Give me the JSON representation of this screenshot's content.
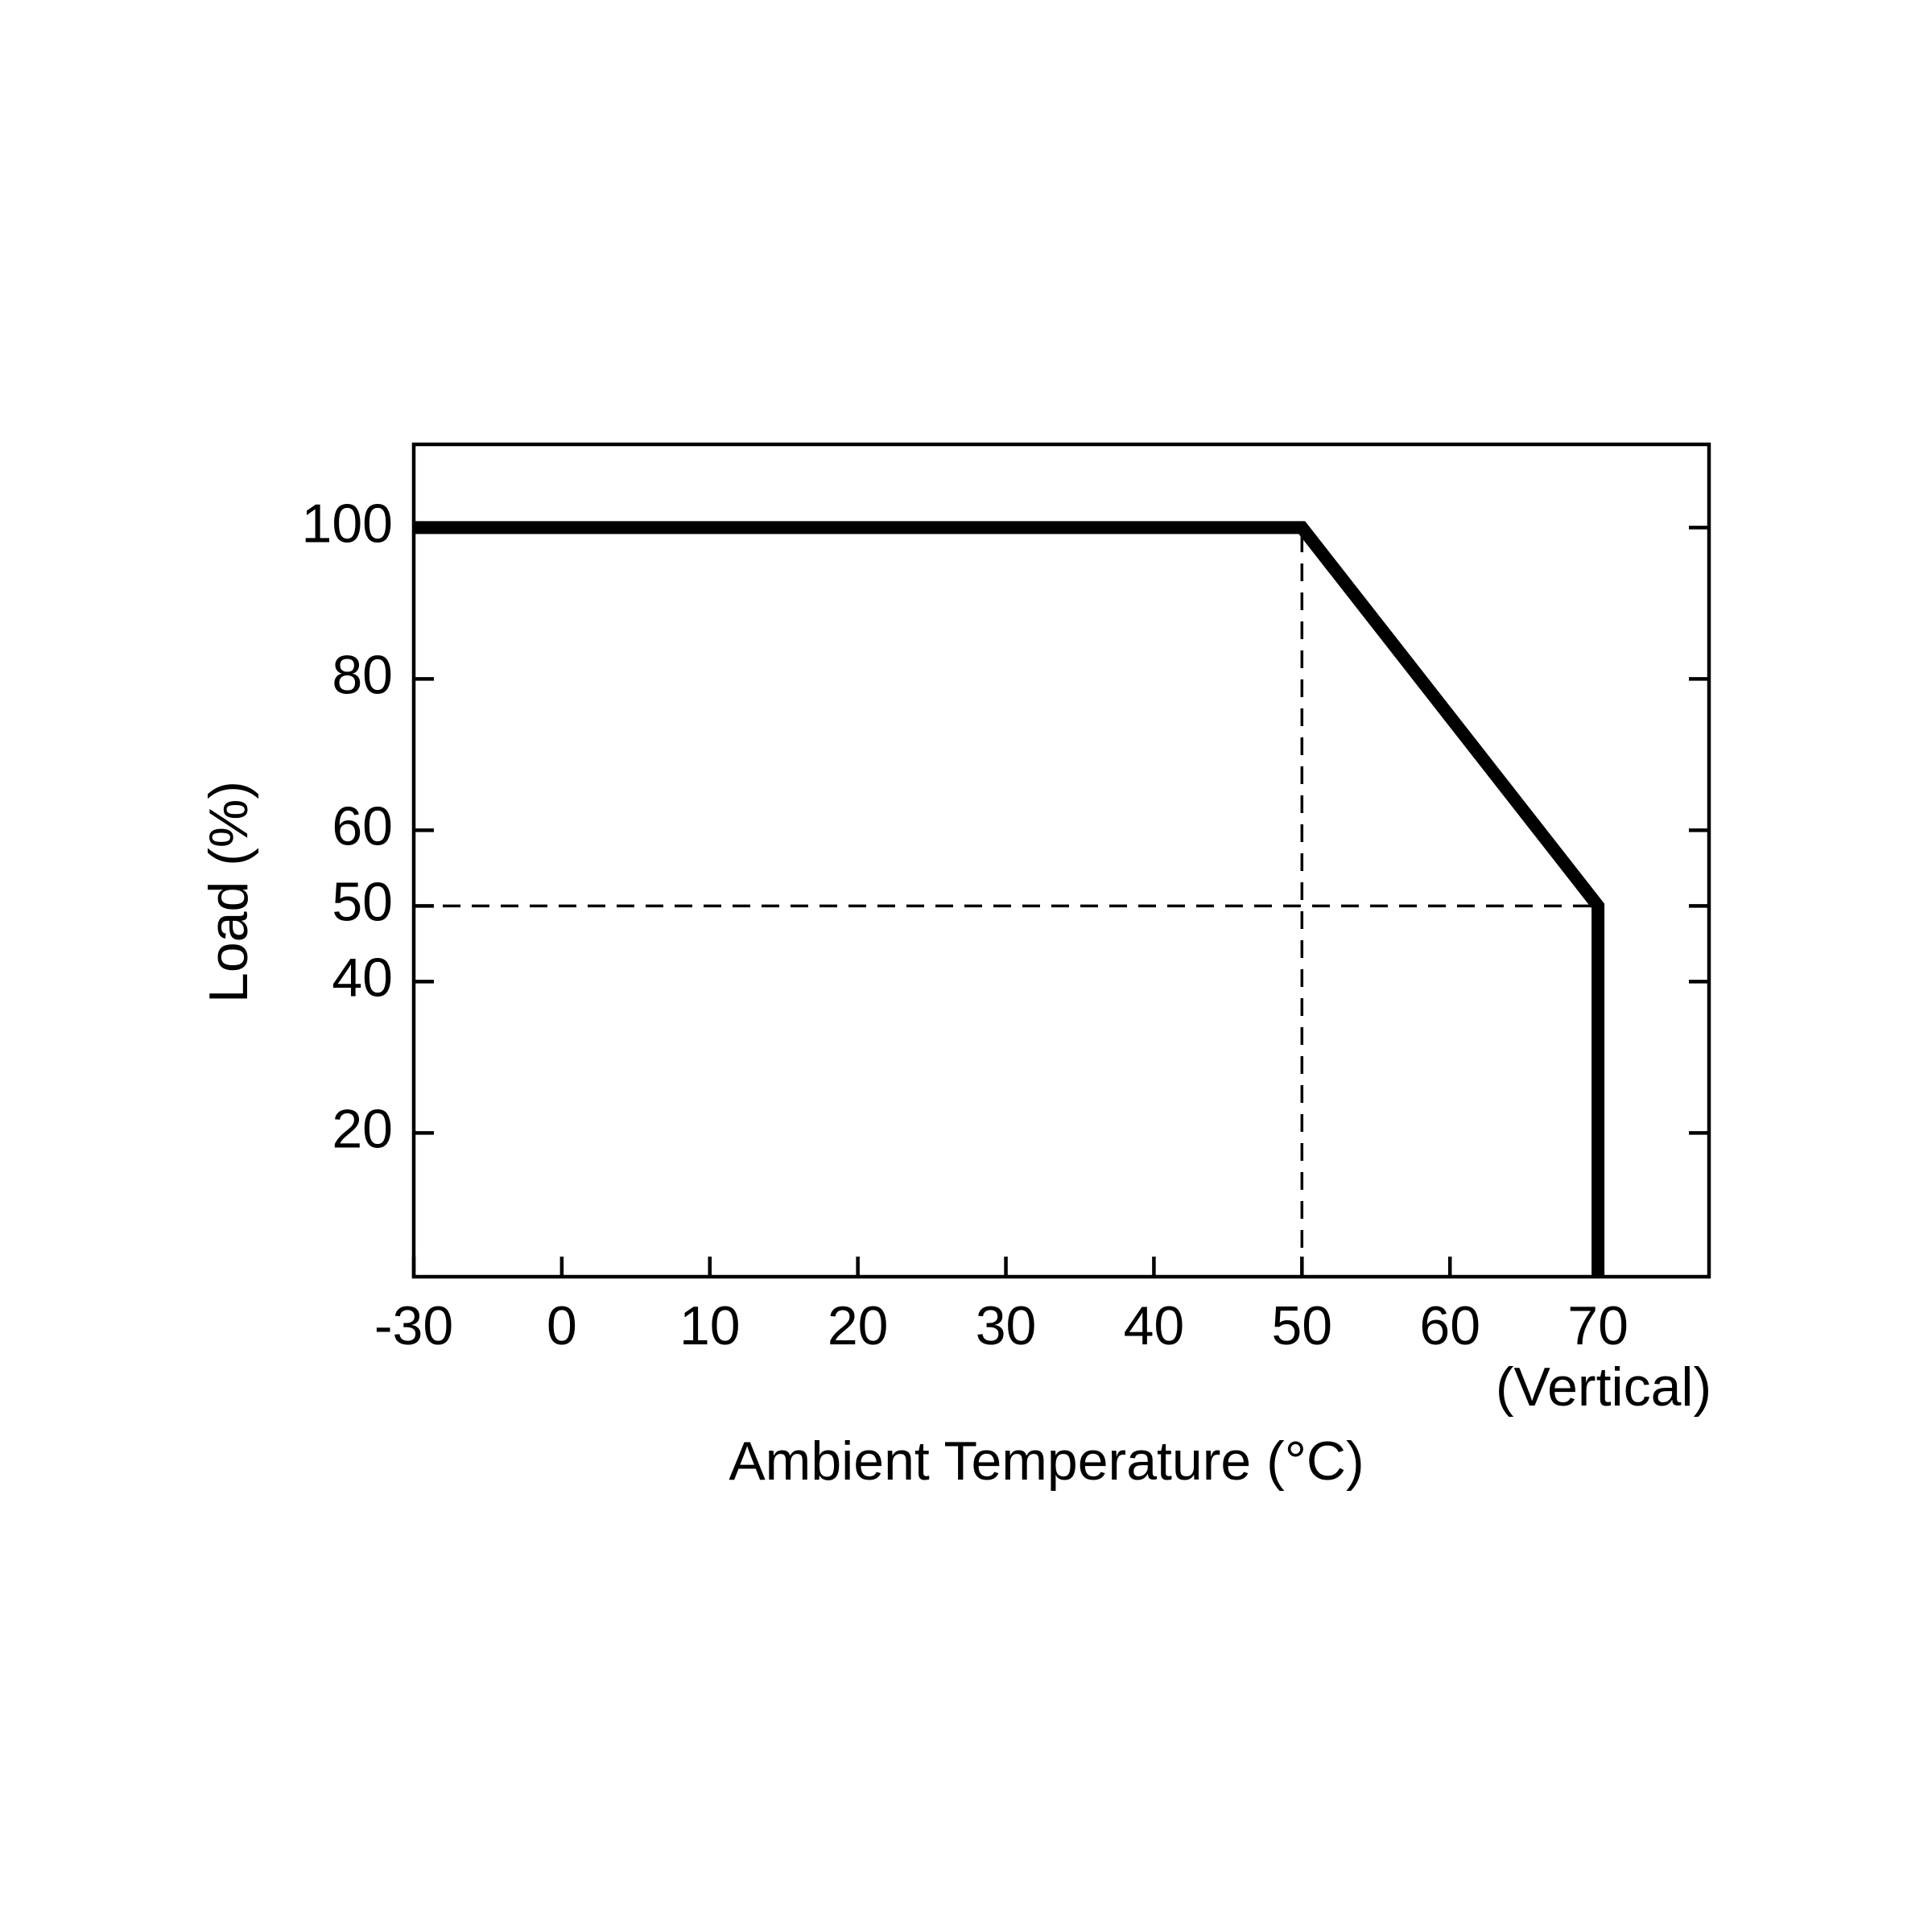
{
  "chart_data": {
    "type": "line",
    "x_label": "Ambient Temperature (°C)",
    "y_label": "Load (%)",
    "annotation": "(Vertical)",
    "x": [
      -30,
      50,
      70,
      70
    ],
    "series": [
      {
        "color": "#000000",
        "values": [
          100,
          100,
          50,
          1
        ]
      }
    ],
    "xlim": [
      -30,
      77.5
    ],
    "ylim": [
      1,
      111
    ],
    "xticks": [
      -30,
      0,
      10,
      20,
      30,
      40,
      50,
      60,
      70
    ],
    "yticks": [
      20,
      40,
      50,
      60,
      80,
      100
    ],
    "reference_lines": {
      "x": 50,
      "y": 50
    }
  }
}
